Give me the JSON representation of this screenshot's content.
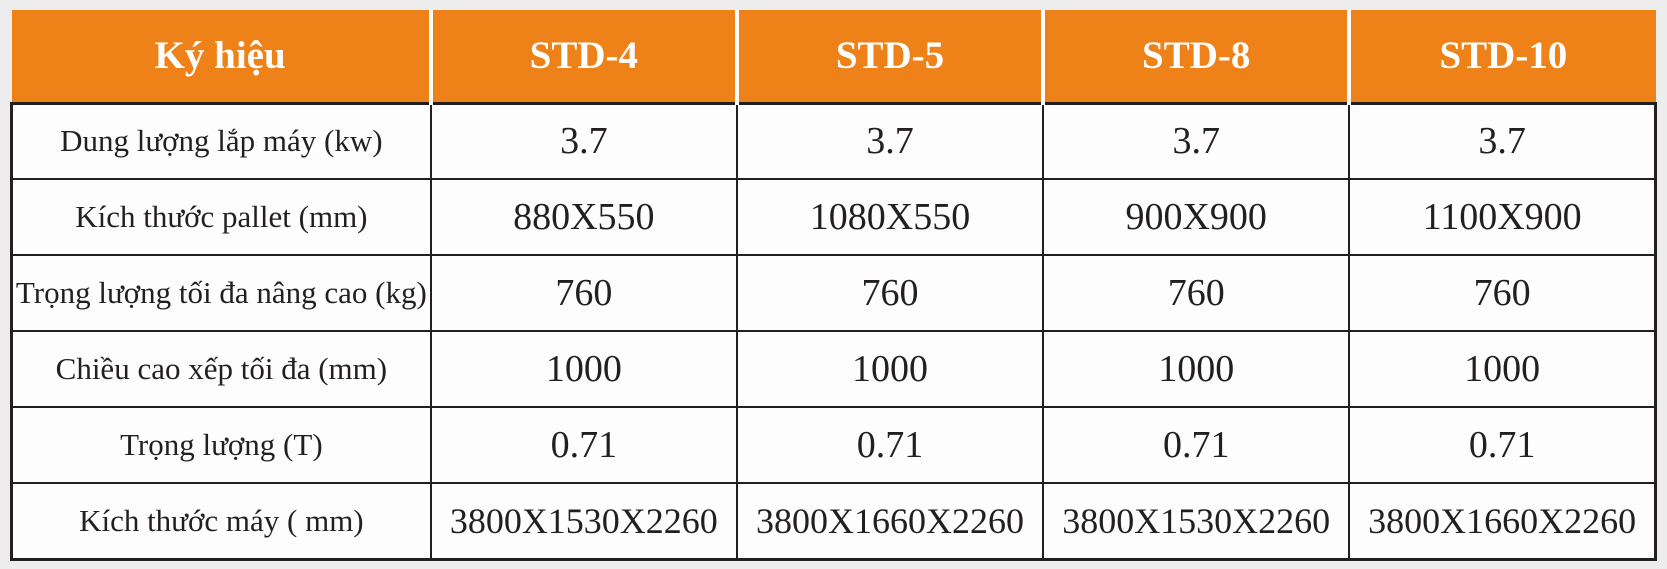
{
  "table": {
    "header": [
      "Ký hiệu",
      "STD-4",
      "STD-5",
      "STD-8",
      "STD-10"
    ],
    "rows": [
      {
        "label": "Dung lượng lắp máy (kw)",
        "values": [
          "3.7",
          "3.7",
          "3.7",
          "3.7"
        ]
      },
      {
        "label": "Kích thước pallet (mm)",
        "values": [
          "880X550",
          "1080X550",
          "900X900",
          "1100X900"
        ]
      },
      {
        "label": "Trọng lượng tối đa nâng cao (kg)",
        "values": [
          "760",
          "760",
          "760",
          "760"
        ]
      },
      {
        "label": "Chiều cao xếp tối đa (mm)",
        "values": [
          "1000",
          "1000",
          "1000",
          "1000"
        ]
      },
      {
        "label": "Trọng lượng (T)",
        "values": [
          "0.71",
          "0.71",
          "0.71",
          "0.71"
        ]
      },
      {
        "label": "Kích thước máy ( mm)",
        "values": [
          "3800X1530X2260",
          "3800X1660X2260",
          "3800X1530X2260",
          "3800X1660X2260"
        ]
      }
    ],
    "colors": {
      "header_bg": "#EE8118",
      "header_text": "#FFFFFF",
      "body_text": "#231F20",
      "border": "#231F20",
      "page_bg": "#EDEDED"
    }
  }
}
